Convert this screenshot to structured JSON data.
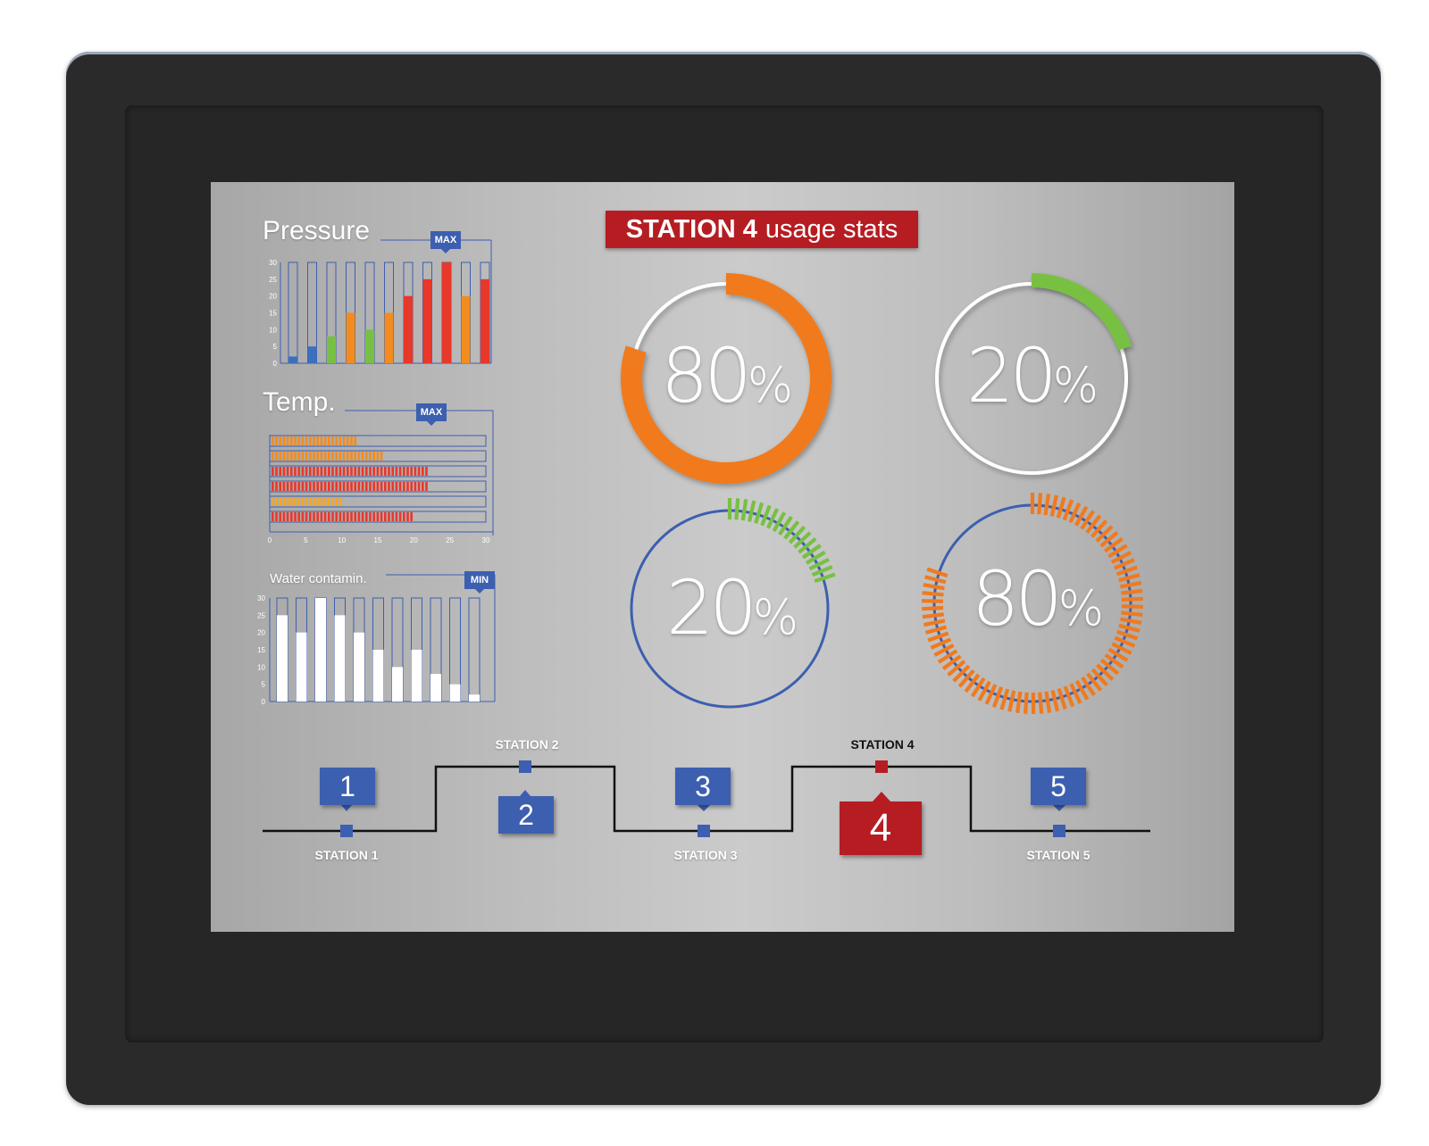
{
  "header": {
    "title_bold": "STATION 4",
    "title_rest": "usage stats"
  },
  "charts_panel": {
    "pressure_label": "Pressure",
    "pressure_tag": "MAX",
    "temp_label": "Temp.",
    "temp_tag": "MAX",
    "water_label": "Water contamin.",
    "water_tag": "MIN"
  },
  "gauges": [
    {
      "value": "80",
      "unit": "%",
      "fill_fraction": 0.8,
      "color": "#f07a1e",
      "style": "solid"
    },
    {
      "value": "20",
      "unit": "%",
      "fill_fraction": 0.2,
      "color": "#78c043",
      "style": "solid"
    },
    {
      "value": "20",
      "unit": "%",
      "fill_fraction": 0.2,
      "color": "#78c043",
      "style": "segmented",
      "ring_color": "#3c5fb0"
    },
    {
      "value": "80",
      "unit": "%",
      "fill_fraction": 0.8,
      "color": "#f07a1e",
      "style": "segmented",
      "ring_color": "#3c5fb0"
    }
  ],
  "stations": [
    {
      "number": "1",
      "label": "STATION 1"
    },
    {
      "number": "2",
      "label": "STATION 2"
    },
    {
      "number": "3",
      "label": "STATION 3"
    },
    {
      "number": "4",
      "label": "STATION 4",
      "active": true
    },
    {
      "number": "5",
      "label": "STATION 5"
    }
  ],
  "colors": {
    "accent_red": "#b51d22",
    "accent_blue": "#3c5fb0",
    "orange": "#f07a1e",
    "green": "#78c043",
    "red_bar": "#e8382a"
  },
  "chart_data": [
    {
      "type": "bar",
      "title": "Pressure",
      "yticks": [
        "0",
        "5",
        "10",
        "15",
        "20",
        "25",
        "30"
      ],
      "ylim": [
        0,
        30
      ],
      "values": [
        2,
        5,
        8,
        15,
        10,
        15,
        20,
        25,
        30,
        20,
        25
      ],
      "colors": [
        "#3c6fc0",
        "#3c6fc0",
        "#78c043",
        "#f28c1f",
        "#78c043",
        "#f28c1f",
        "#e8382a",
        "#e8382a",
        "#e8382a",
        "#f28c1f",
        "#e8382a"
      ]
    },
    {
      "type": "bar",
      "orientation": "horizontal",
      "title": "Temp.",
      "xticks": [
        "0",
        "5",
        "10",
        "15",
        "20",
        "25",
        "30"
      ],
      "xlim": [
        0,
        30
      ],
      "values": [
        12,
        16,
        22,
        22,
        10,
        20
      ],
      "colors": [
        "#f28c1f",
        "#f28c1f",
        "#e8382a",
        "#e8382a",
        "#f5a623",
        "#e8382a"
      ]
    },
    {
      "type": "bar",
      "title": "Water contamin.",
      "yticks": [
        "0",
        "5",
        "10",
        "15",
        "20",
        "25",
        "30"
      ],
      "ylim": [
        0,
        30
      ],
      "values": [
        25,
        20,
        30,
        25,
        20,
        15,
        10,
        15,
        8,
        5,
        2
      ],
      "colors": [
        "#ffffff"
      ]
    }
  ]
}
